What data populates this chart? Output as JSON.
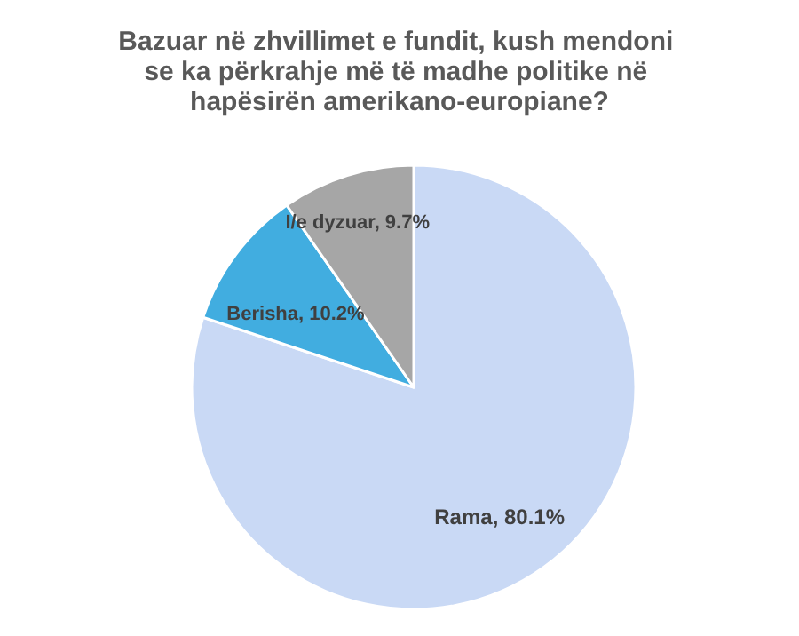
{
  "chart_data": {
    "type": "pie",
    "title": "Bazuar në zhvillimet e fundit, kush mendoni se ka përkrahje më të madhe politike në hapësirën amerikano-europiane?",
    "categories": [
      "Rama",
      "Berisha",
      "I/e dyzuar"
    ],
    "values": [
      80.1,
      10.2,
      9.7
    ],
    "value_labels": [
      "80.1%",
      "10.2%",
      "9.7%"
    ],
    "colors": [
      "#c9d9f5",
      "#41ade0",
      "#a6a6a6"
    ],
    "legend": false
  }
}
